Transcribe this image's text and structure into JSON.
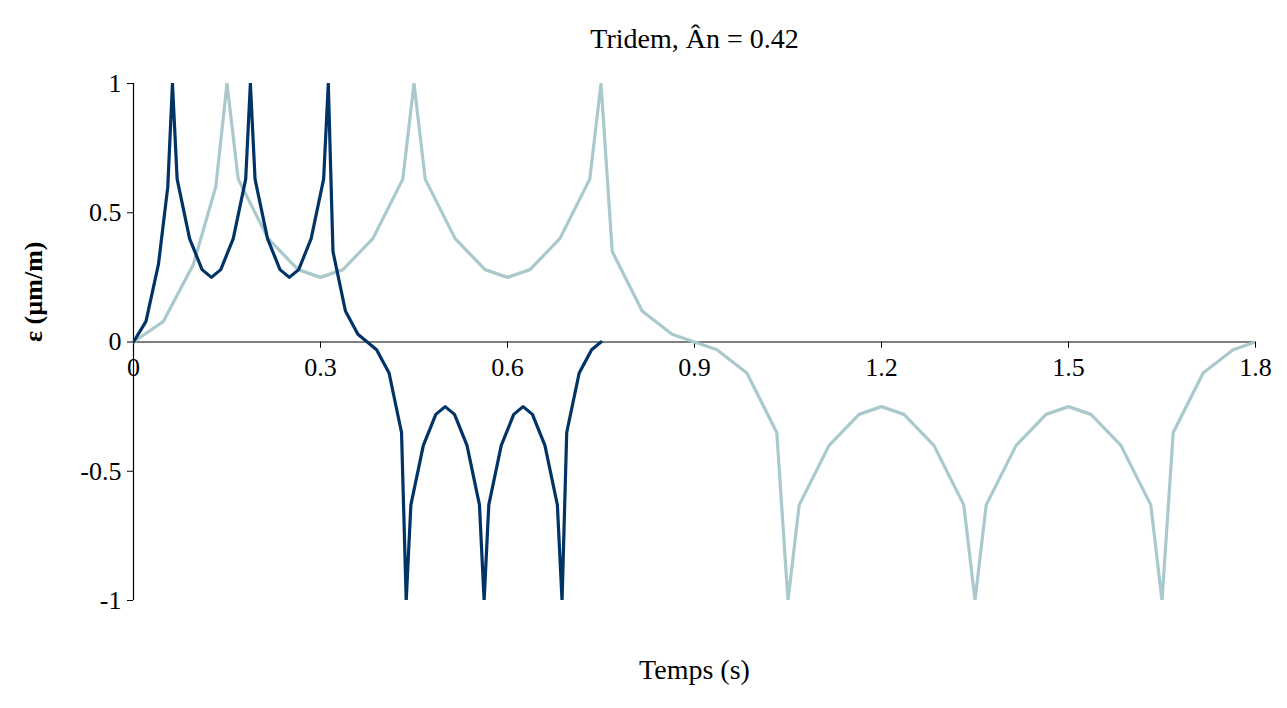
{
  "chart_data": {
    "type": "line",
    "title": "Tridem, Ân = 0.42",
    "x_label": "Temps (s)",
    "y_label": "ε (µm/m)",
    "xlim": [
      0,
      1.8
    ],
    "xticks": [
      0,
      0.3,
      0.6,
      0.9,
      1.2,
      1.5,
      1.8
    ],
    "ylim": [
      -1,
      1
    ],
    "yticks": [
      -1,
      -0.5,
      0,
      0.5,
      1
    ],
    "grid": false,
    "series": [
      {
        "color": "#a9c9cc",
        "line_style": "solid",
        "x": [
          0,
          0.048,
          0.096,
          0.132,
          0.15,
          0.168,
          0.216,
          0.264,
          0.3,
          0.336,
          0.384,
          0.432,
          0.45,
          0.468,
          0.516,
          0.564,
          0.6,
          0.636,
          0.684,
          0.732,
          0.75,
          0.768,
          0.816,
          0.864,
          0.9,
          0.936,
          0.984,
          1.032,
          1.05,
          1.068,
          1.116,
          1.164,
          1.2,
          1.236,
          1.284,
          1.332,
          1.35,
          1.368,
          1.416,
          1.464,
          1.5,
          1.536,
          1.584,
          1.632,
          1.65,
          1.668,
          1.716,
          1.764,
          1.8
        ],
        "values": [
          0,
          0.08,
          0.3,
          0.6,
          1,
          0.63,
          0.4,
          0.28,
          0.25,
          0.28,
          0.4,
          0.63,
          1,
          0.63,
          0.4,
          0.28,
          0.25,
          0.28,
          0.4,
          0.63,
          1,
          0.35,
          0.12,
          0.03,
          0,
          -0.03,
          -0.12,
          -0.35,
          -1,
          -0.63,
          -0.4,
          -0.28,
          -0.25,
          -0.28,
          -0.4,
          -0.63,
          -1,
          -0.63,
          -0.4,
          -0.28,
          -0.25,
          -0.28,
          -0.4,
          -0.63,
          -1,
          -0.35,
          -0.12,
          -0.03,
          0
        ]
      },
      {
        "color": "#003366",
        "line_style": "solid",
        "x": [
          0,
          0.02,
          0.04,
          0.055,
          0.0625,
          0.07,
          0.09,
          0.11,
          0.125,
          0.14,
          0.16,
          0.18,
          0.1875,
          0.195,
          0.215,
          0.235,
          0.25,
          0.265,
          0.285,
          0.305,
          0.3125,
          0.32,
          0.34,
          0.36,
          0.375,
          0.39,
          0.41,
          0.43,
          0.4375,
          0.445,
          0.465,
          0.485,
          0.5,
          0.515,
          0.535,
          0.555,
          0.5625,
          0.57,
          0.59,
          0.61,
          0.625,
          0.64,
          0.66,
          0.68,
          0.6875,
          0.695,
          0.715,
          0.735,
          0.75
        ],
        "values": [
          0,
          0.08,
          0.3,
          0.6,
          1,
          0.63,
          0.4,
          0.28,
          0.25,
          0.28,
          0.4,
          0.63,
          1,
          0.63,
          0.4,
          0.28,
          0.25,
          0.28,
          0.4,
          0.63,
          1,
          0.35,
          0.12,
          0.03,
          0,
          -0.03,
          -0.12,
          -0.35,
          -1,
          -0.63,
          -0.4,
          -0.28,
          -0.25,
          -0.28,
          -0.4,
          -0.63,
          -1,
          -0.63,
          -0.4,
          -0.28,
          -0.25,
          -0.28,
          -0.4,
          -0.63,
          -1,
          -0.35,
          -0.12,
          -0.03,
          0
        ]
      }
    ]
  }
}
